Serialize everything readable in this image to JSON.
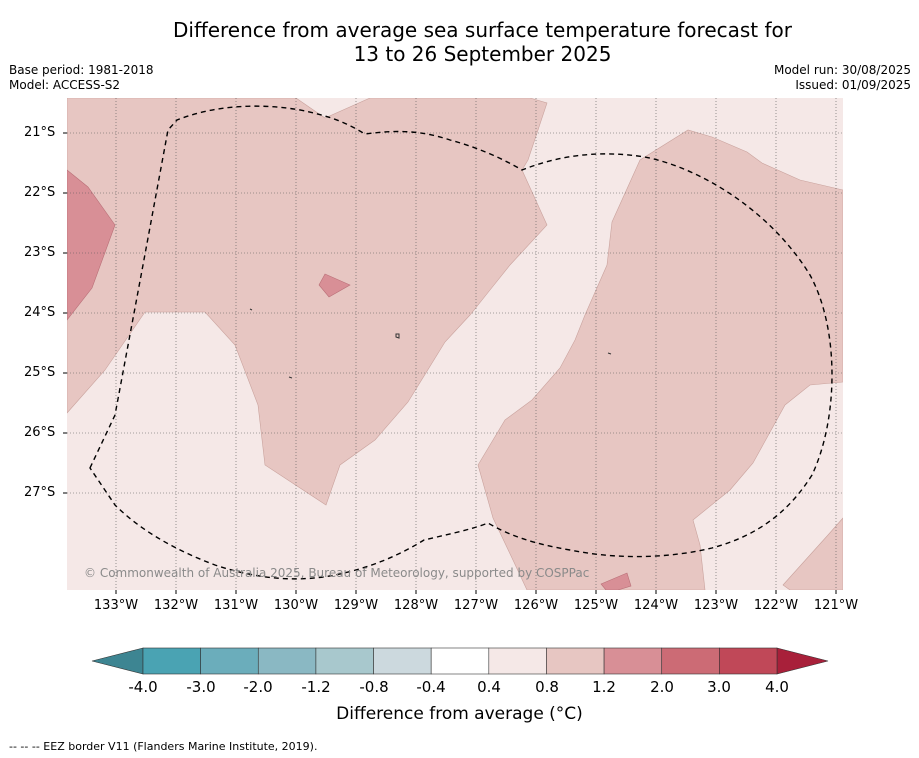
{
  "title_line1": "Difference from average sea surface temperature forecast for",
  "title_line2": "13 to 26 September 2025",
  "base_period": "Base period: 1981-2018",
  "model": "Model: ACCESS-S2",
  "model_run": "Model run: 30/08/2025",
  "issued": "Issued: 01/09/2025",
  "copyright": "© Commonwealth of Australia 2025, Bureau of Meteorology, supported by COSPPac",
  "lat_labels": [
    "21°S",
    "22°S",
    "23°S",
    "24°S",
    "25°S",
    "26°S",
    "27°S"
  ],
  "lon_labels": [
    "133°W",
    "132°W",
    "131°W",
    "130°W",
    "129°W",
    "128°W",
    "127°W",
    "126°W",
    "125°W",
    "124°W",
    "123°W",
    "122°W",
    "121°W"
  ],
  "colorbar": {
    "ticks": [
      "-4.0",
      "-3.0",
      "-2.0",
      "-1.2",
      "-0.8",
      "-0.4",
      "0.4",
      "0.8",
      "1.2",
      "2.0",
      "3.0",
      "4.0"
    ],
    "colors": [
      "#4aa3b3",
      "#6badbb",
      "#8ab8c3",
      "#a8c8cd",
      "#ccd9de",
      "#ffffff",
      "#f5e8e7",
      "#e7c6c2",
      "#d88f96",
      "#cc6b75",
      "#c04858"
    ],
    "under_color": "#3d8592",
    "over_color": "#a8203a",
    "label": "Difference from average (°C)"
  },
  "legend_note": "--  --  -- EEZ border V11 (Flanders Marine Institute, 2019)."
}
